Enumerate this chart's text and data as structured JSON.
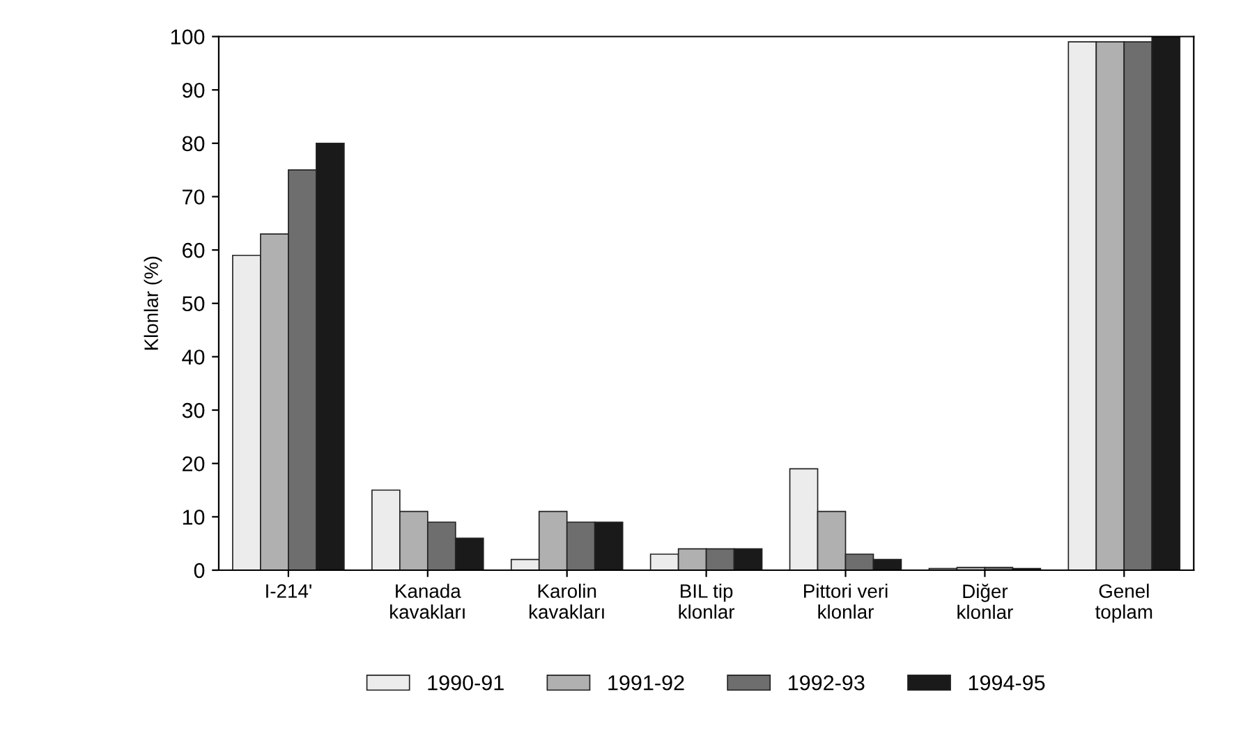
{
  "chart_data": {
    "type": "bar",
    "ylabel": "Klonlar (%)",
    "categories": [
      "I-214'",
      "Kanada\nkavakları",
      "Karolin\nkavakları",
      "BIL tip\nklonlar",
      "Pittori veri\nklonlar",
      "Diğer\nklonlar",
      "Genel\ntoplam"
    ],
    "series": [
      {
        "name": "1990-91",
        "color": "#ececec",
        "values": [
          59,
          15,
          2,
          3,
          19,
          0.3,
          99
        ]
      },
      {
        "name": "1991-92",
        "color": "#b0b0b0",
        "values": [
          63,
          11,
          11,
          4,
          11,
          0.5,
          99
        ]
      },
      {
        "name": "1992-93",
        "color": "#6e6e6e",
        "values": [
          75,
          9,
          9,
          4,
          3,
          0.5,
          99
        ]
      },
      {
        "name": "1994-95",
        "color": "#1a1a1a",
        "values": [
          80,
          6,
          9,
          4,
          2,
          0.3,
          100
        ]
      }
    ],
    "ylim": [
      0,
      100
    ],
    "yticks": [
      0,
      10,
      20,
      30,
      40,
      50,
      60,
      70,
      80,
      90,
      100
    ],
    "grid": false,
    "legend": "bottom"
  }
}
